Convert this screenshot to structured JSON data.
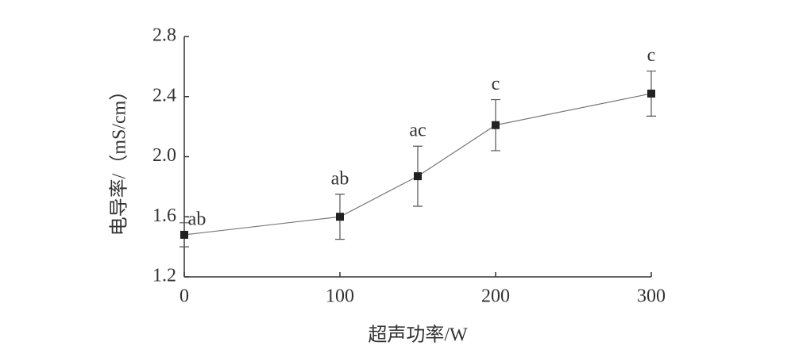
{
  "chart_data": {
    "type": "line",
    "xlabel": "超声功率/W",
    "ylabel": "电导率/（mS/cm）",
    "x": [
      0,
      100,
      150,
      200,
      300
    ],
    "series": [
      {
        "color": "#222222",
        "line_color": "#777777",
        "values": [
          1.48,
          1.6,
          1.87,
          2.21,
          2.42
        ],
        "errors": [
          0.08,
          0.15,
          0.2,
          0.17,
          0.15
        ],
        "annotations": [
          "ab",
          "ab",
          "ac",
          "c",
          "c"
        ]
      }
    ],
    "xlim": [
      0,
      300
    ],
    "xticks": [
      0,
      100,
      200,
      300
    ],
    "ylim": [
      1.2,
      2.8
    ],
    "yticks": [
      1.2,
      1.6,
      {
        "value": 2,
        "label": "2.0"
      },
      2.4,
      2.8
    ],
    "grid": false
  }
}
